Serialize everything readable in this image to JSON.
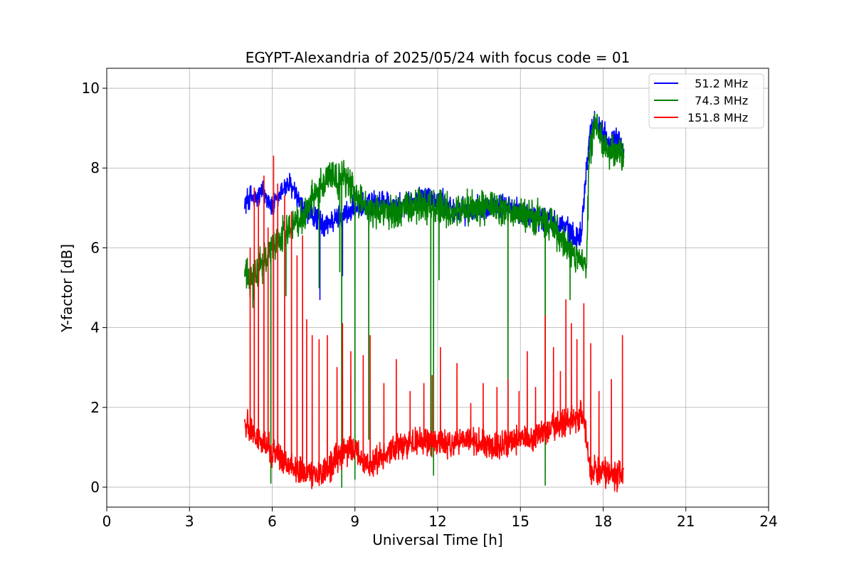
{
  "chart_data": {
    "type": "line",
    "title": "EGYPT-Alexandria of 2025/05/24 with focus code = 01",
    "xlabel": "Universal Time [h]",
    "ylabel": "Y-factor [dB]",
    "xlim": [
      0,
      24
    ],
    "ylim": [
      -0.5,
      10.5
    ],
    "xticks": [
      0,
      3,
      6,
      9,
      12,
      15,
      18,
      21,
      24
    ],
    "yticks": [
      0,
      2,
      4,
      6,
      8,
      10
    ],
    "grid": true,
    "legend_position": "top-right",
    "series": [
      {
        "name": "  51.2 MHz",
        "color": "#0000ff",
        "x": [
          5.0,
          5.2,
          5.4,
          5.6,
          5.8,
          6.0,
          6.2,
          6.4,
          6.6,
          6.8,
          7.0,
          7.2,
          7.5,
          7.75,
          7.8,
          8.0,
          8.5,
          9.0,
          9.5,
          10.0,
          10.5,
          11.0,
          11.5,
          12.0,
          12.5,
          13.0,
          13.5,
          14.0,
          14.5,
          15.0,
          15.5,
          16.0,
          16.5,
          16.8,
          17.0,
          17.2,
          17.5,
          17.7,
          18.0,
          18.3,
          18.5,
          18.75
        ],
        "y": [
          7.1,
          7.3,
          7.2,
          7.4,
          7.3,
          7.0,
          7.2,
          7.5,
          7.6,
          7.4,
          7.1,
          6.9,
          6.8,
          6.7,
          6.5,
          6.6,
          6.8,
          7.0,
          7.1,
          7.2,
          7.0,
          7.1,
          7.3,
          7.2,
          7.0,
          6.9,
          7.0,
          7.1,
          7.0,
          6.9,
          6.8,
          6.7,
          6.6,
          6.4,
          6.2,
          6.4,
          8.8,
          9.2,
          8.9,
          8.6,
          8.7,
          8.5
        ],
        "noise": 0.25,
        "spikes": [
          [
            7.73,
            4.7
          ],
          [
            8.55,
            5.3
          ]
        ]
      },
      {
        "name": "  74.3 MHz",
        "color": "#008000",
        "x": [
          5.0,
          5.2,
          5.4,
          5.7,
          6.0,
          6.3,
          6.6,
          6.9,
          7.2,
          7.5,
          7.8,
          8.0,
          8.3,
          8.6,
          8.9,
          9.2,
          9.5,
          10.0,
          10.5,
          11.0,
          11.5,
          12.0,
          12.5,
          13.0,
          13.5,
          14.0,
          14.5,
          15.0,
          15.5,
          16.0,
          16.3,
          16.6,
          16.8,
          17.0,
          17.2,
          17.4,
          17.5,
          17.7,
          18.0,
          18.3,
          18.5,
          18.75
        ],
        "y": [
          5.4,
          5.1,
          5.3,
          5.7,
          6.0,
          6.3,
          6.5,
          6.7,
          6.9,
          7.3,
          7.6,
          7.8,
          7.7,
          7.8,
          7.5,
          7.2,
          7.0,
          6.9,
          6.9,
          7.0,
          7.1,
          7.0,
          6.9,
          7.0,
          7.0,
          7.0,
          6.9,
          6.8,
          6.8,
          6.6,
          6.4,
          6.1,
          5.9,
          5.7,
          5.6,
          5.6,
          8.4,
          9.0,
          8.6,
          8.4,
          8.3,
          8.4
        ],
        "noise": 0.35,
        "spikes": [
          [
            5.3,
            4.5
          ],
          [
            5.65,
            5.1
          ],
          [
            5.95,
            0.1
          ],
          [
            6.5,
            4.8
          ],
          [
            7.7,
            5.0
          ],
          [
            8.45,
            5.4
          ],
          [
            8.52,
            0.0
          ],
          [
            9.0,
            0.2
          ],
          [
            9.5,
            1.2
          ],
          [
            11.75,
            0.8
          ],
          [
            11.85,
            0.3
          ],
          [
            12.05,
            5.2
          ],
          [
            14.55,
            1.0
          ],
          [
            15.9,
            0.05
          ],
          [
            16.8,
            4.7
          ]
        ]
      },
      {
        "name": "151.8 MHz",
        "color": "#ff0000",
        "x": [
          5.0,
          5.2,
          5.4,
          5.6,
          5.8,
          6.0,
          6.2,
          6.5,
          6.8,
          7.0,
          7.3,
          7.6,
          7.9,
          8.2,
          8.5,
          8.8,
          9.0,
          9.3,
          9.6,
          10.0,
          10.5,
          11.0,
          11.5,
          12.0,
          12.5,
          13.0,
          13.5,
          14.0,
          14.5,
          15.0,
          15.5,
          16.0,
          16.5,
          17.0,
          17.3,
          17.5,
          17.7,
          18.0,
          18.3,
          18.5,
          18.75
        ],
        "y": [
          1.6,
          1.5,
          1.3,
          1.2,
          1.0,
          0.9,
          0.8,
          0.6,
          0.5,
          0.4,
          0.35,
          0.3,
          0.4,
          0.6,
          0.8,
          1.0,
          0.9,
          0.6,
          0.6,
          0.8,
          1.0,
          1.1,
          1.2,
          1.1,
          1.0,
          1.2,
          1.1,
          1.0,
          1.1,
          1.2,
          1.3,
          1.4,
          1.6,
          1.7,
          1.8,
          0.5,
          0.4,
          0.35,
          0.3,
          0.3,
          0.35
        ],
        "noise": 0.3,
        "spikes": [
          [
            5.2,
            6.0
          ],
          [
            5.35,
            7.5
          ],
          [
            5.5,
            7.2
          ],
          [
            5.7,
            7.8
          ],
          [
            5.85,
            6.5
          ],
          [
            6.05,
            8.3
          ],
          [
            6.2,
            7.6
          ],
          [
            6.45,
            7.3
          ],
          [
            6.7,
            6.9
          ],
          [
            6.9,
            5.8
          ],
          [
            7.1,
            6.3
          ],
          [
            7.25,
            4.2
          ],
          [
            7.45,
            3.8
          ],
          [
            7.7,
            3.7
          ],
          [
            8.0,
            3.8
          ],
          [
            8.35,
            3.0
          ],
          [
            8.55,
            4.1
          ],
          [
            8.85,
            3.4
          ],
          [
            9.3,
            3.3
          ],
          [
            9.55,
            3.8
          ],
          [
            10.05,
            2.6
          ],
          [
            10.5,
            3.2
          ],
          [
            11.0,
            2.4
          ],
          [
            11.5,
            2.6
          ],
          [
            11.8,
            2.8
          ],
          [
            12.1,
            3.5
          ],
          [
            12.7,
            3.1
          ],
          [
            13.2,
            2.1
          ],
          [
            13.65,
            2.6
          ],
          [
            14.15,
            2.5
          ],
          [
            14.55,
            2.7
          ],
          [
            14.95,
            2.4
          ],
          [
            15.25,
            3.4
          ],
          [
            15.55,
            2.5
          ],
          [
            15.9,
            4.3
          ],
          [
            16.2,
            3.5
          ],
          [
            16.45,
            2.9
          ],
          [
            16.65,
            4.7
          ],
          [
            16.85,
            4.1
          ],
          [
            17.05,
            3.7
          ],
          [
            17.3,
            4.6
          ],
          [
            17.55,
            3.6
          ],
          [
            17.85,
            2.4
          ],
          [
            18.3,
            2.7
          ],
          [
            18.7,
            3.8
          ]
        ]
      }
    ]
  }
}
